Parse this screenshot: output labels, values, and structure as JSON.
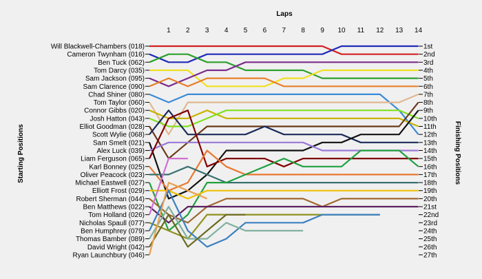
{
  "chart_data": {
    "type": "line",
    "title": "",
    "x_axis_title": "Laps",
    "left_axis_title": "Starting Positions",
    "right_axis_title": "Finishing Positions",
    "laps": [
      1,
      2,
      3,
      4,
      5,
      6,
      7,
      8,
      9,
      10,
      11,
      12,
      13,
      14
    ],
    "starting_positions": [
      "Will Blackwell-Chambers (018)",
      "Cameron Twynham (016)",
      "Ben Tuck (062)",
      "Tom Darcy (035)",
      "Sam Jackson (095)",
      "Sam Clarence (090)",
      "Chad Shiner (080)",
      "Tom Taylor (060)",
      "Connor Gibbs (020)",
      "Josh Hatton (043)",
      "Elliot Goodman (028)",
      "Scott Wylie (068)",
      "Sam Smelt (021)",
      "Alex Luck (039)",
      "Liam Ferguson (065)",
      "Karl Bonney (025)",
      "Oliver Peacock (023)",
      "Michael Eastwell (027)",
      "Elliott Frost (029)",
      "Robert Sherman (044)",
      "Ben Matthews (022)",
      "Tom Holland (026)",
      "Nicholas Spaull (077)",
      "Ben Humphrey (079)",
      "Thomas Bamber (089)",
      "David Wright (042)",
      "Ryan Launchbury (046)"
    ],
    "finishing_positions": [
      "1st",
      "2nd",
      "3rd",
      "4th",
      "5th",
      "6th",
      "7th",
      "8th",
      "9th",
      "10th",
      "11th",
      "12th",
      "13th",
      "14th",
      "15th",
      "16th",
      "17th",
      "18th",
      "19th",
      "20th",
      "21st",
      "22nd",
      "23rd",
      "24th",
      "25th",
      "26th",
      "27th"
    ],
    "series": [
      {
        "start": 1,
        "color": "#d42020",
        "positions": [
          1,
          1,
          1,
          1,
          1,
          1,
          1,
          1,
          1,
          2,
          2,
          2,
          2,
          2
        ]
      },
      {
        "start": 2,
        "color": "#1f2ab8",
        "positions": [
          3,
          3,
          2,
          2,
          2,
          2,
          2,
          2,
          2,
          1,
          1,
          1,
          1,
          1
        ]
      },
      {
        "start": 3,
        "color": "#2ca02c",
        "positions": [
          2,
          2,
          3,
          3,
          4,
          4,
          4,
          4,
          5,
          5,
          5,
          5,
          5,
          5
        ]
      },
      {
        "start": 4,
        "color": "#f0e020",
        "positions": [
          4,
          4,
          6,
          6,
          6,
          6,
          5,
          5,
          4,
          4,
          4,
          4,
          4,
          4
        ]
      },
      {
        "start": 5,
        "color": "#7b2a8c",
        "positions": [
          6,
          5,
          4,
          4,
          3,
          3,
          3,
          3,
          3,
          3,
          3,
          3,
          3,
          3
        ]
      },
      {
        "start": 6,
        "color": "#e8802a",
        "positions": [
          5,
          6,
          5,
          5,
          5,
          5,
          6,
          6,
          6,
          6,
          6,
          6,
          6,
          6
        ]
      },
      {
        "start": 7,
        "color": "#3a8ad6",
        "positions": [
          8,
          7,
          7,
          7,
          7,
          7,
          7,
          7,
          7,
          7,
          7,
          7,
          9,
          12
        ]
      },
      {
        "start": 8,
        "color": "#e0b890",
        "positions": [
          12,
          8,
          8,
          8,
          8,
          8,
          8,
          8,
          8,
          8,
          8,
          8,
          8,
          7
        ]
      },
      {
        "start": 9,
        "color": "#c8b400",
        "positions": [
          10,
          10,
          9,
          10,
          10,
          10,
          10,
          10,
          10,
          10,
          10,
          10,
          10,
          11
        ]
      },
      {
        "start": 10,
        "color": "#80e020",
        "positions": [
          11,
          11,
          10,
          9,
          9,
          9,
          9,
          9,
          9,
          9,
          9,
          9,
          9,
          10
        ]
      },
      {
        "start": 11,
        "color": "#6b3a1a",
        "positions": [
          15,
          13,
          11,
          11,
          11,
          11,
          11,
          11,
          11,
          11,
          11,
          11,
          11,
          8
        ]
      },
      {
        "start": 12,
        "color": "#1a2a5a",
        "positions": [
          9,
          12,
          12,
          12,
          12,
          11,
          12,
          12,
          12,
          12,
          13,
          13,
          13,
          13
        ]
      },
      {
        "start": 13,
        "color": "#111111",
        "positions": [
          20,
          19,
          17,
          14,
          14,
          14,
          14,
          14,
          13,
          13,
          12,
          12,
          12,
          9
        ]
      },
      {
        "start": 14,
        "color": "#9a78d8",
        "positions": [
          13,
          13,
          13,
          13,
          13,
          13,
          13,
          13,
          14,
          14,
          14,
          14,
          14,
          14
        ]
      },
      {
        "start": 15,
        "color": "#800000",
        "positions": [
          10,
          9,
          16,
          15,
          15,
          15,
          16,
          15,
          15,
          15,
          15,
          15,
          15,
          15
        ]
      },
      {
        "start": 16,
        "color": "#e87830",
        "positions": [
          19,
          18,
          14,
          16,
          17,
          17,
          17,
          17,
          17,
          17,
          17,
          17,
          17,
          17
        ]
      },
      {
        "start": 17,
        "color": "#3a7070",
        "positions": [
          17,
          16,
          17,
          18,
          18,
          18,
          18,
          18,
          18,
          18,
          18,
          18,
          18,
          18
        ]
      },
      {
        "start": 18,
        "color": "#20a040",
        "positions": [
          24,
          22,
          18,
          18,
          17,
          16,
          15,
          16,
          16,
          16,
          14,
          14,
          14,
          16
        ]
      },
      {
        "start": 19,
        "color": "#f0c000",
        "positions": [
          19,
          20,
          19,
          19,
          19,
          19,
          19,
          19,
          19,
          19,
          19,
          19,
          19,
          19
        ]
      },
      {
        "start": 20,
        "color": "#a06830",
        "positions": [
          22,
          23,
          21,
          20,
          20,
          20,
          20,
          20,
          21,
          20,
          20,
          20,
          20,
          20
        ]
      },
      {
        "start": 21,
        "color": "#5a2060",
        "positions": [
          23,
          21,
          21,
          21,
          21,
          21,
          21,
          21,
          21,
          21,
          21,
          21,
          21,
          21
        ]
      },
      {
        "start": 22,
        "color": "#d070d0",
        "positions": [
          15,
          15
        ]
      },
      {
        "start": 23,
        "color": "#909020",
        "positions": [
          24,
          25,
          22,
          22,
          22,
          22,
          22,
          22,
          22,
          22,
          22,
          22
        ]
      },
      {
        "start": 24,
        "color": "#3a80c0",
        "positions": [
          19,
          24,
          26,
          25,
          23,
          23,
          23,
          23,
          22,
          22,
          22,
          22
        ]
      },
      {
        "start": 25,
        "color": "#80b0a0",
        "positions": [
          21,
          25,
          25,
          23,
          24,
          24,
          24,
          24
        ]
      },
      {
        "start": 26,
        "color": "#6a6a20",
        "positions": [
          22,
          26,
          24,
          22,
          22
        ]
      },
      {
        "start": 27,
        "color": "#e8a050",
        "positions": [
          18,
          19,
          20
        ]
      }
    ]
  }
}
